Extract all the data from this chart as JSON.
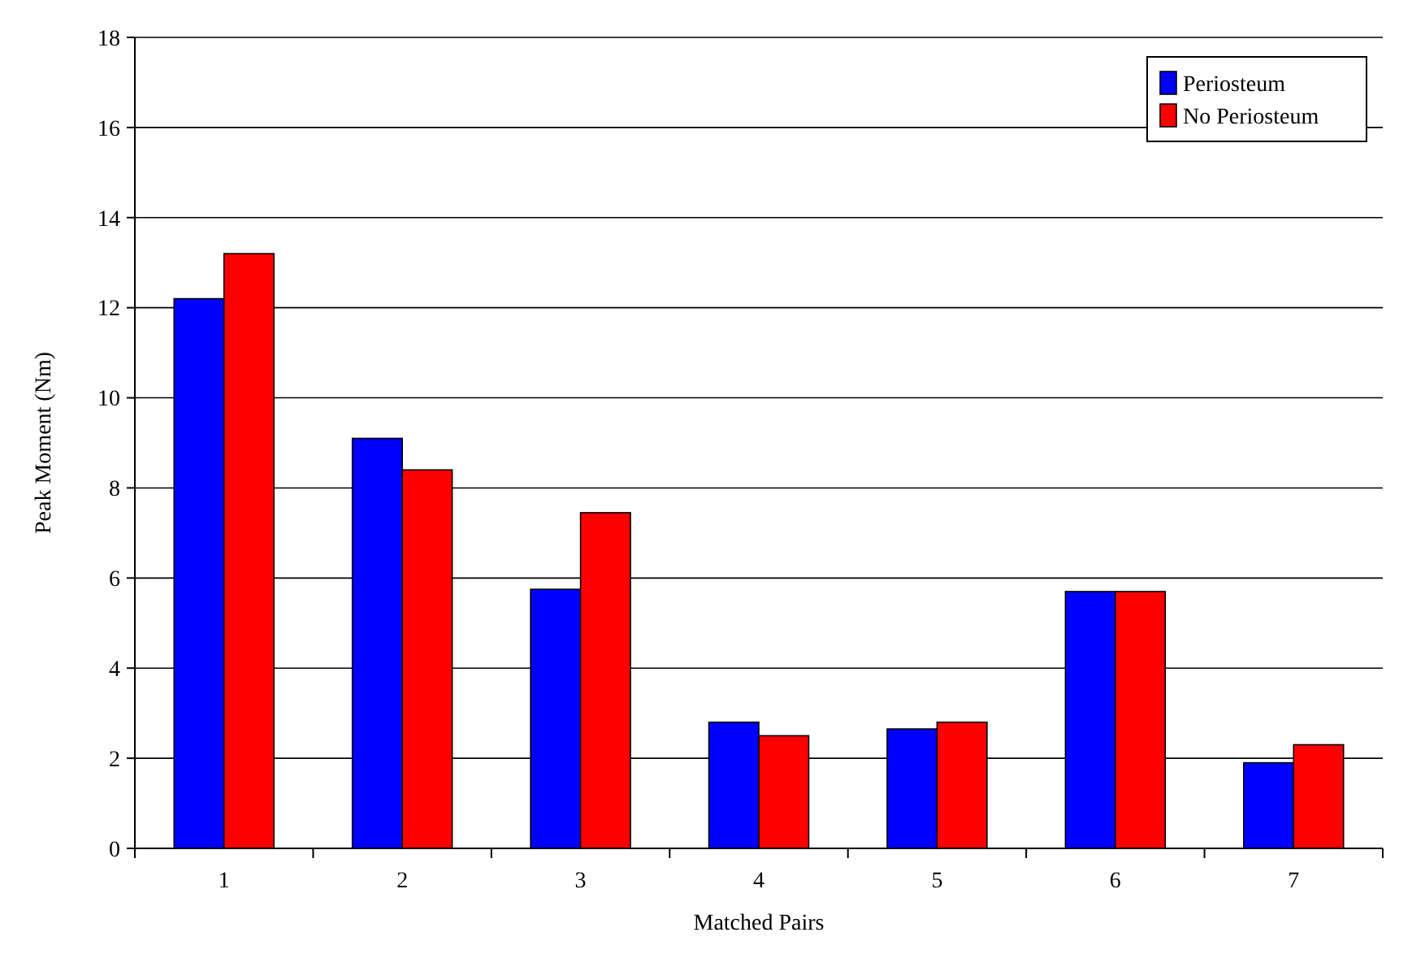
{
  "chart_data": {
    "type": "bar",
    "xlabel": "Matched Pairs",
    "ylabel": "Peak Moment (Nm)",
    "categories": [
      "1",
      "2",
      "3",
      "4",
      "5",
      "6",
      "7"
    ],
    "series": [
      {
        "name": "Periosteum",
        "color": "#0000ff",
        "values": [
          12.2,
          9.1,
          5.75,
          2.8,
          2.65,
          5.7,
          1.9
        ]
      },
      {
        "name": "No Periosteum",
        "color": "#ff0000",
        "values": [
          13.2,
          8.4,
          7.45,
          2.5,
          2.8,
          5.7,
          2.3
        ]
      }
    ],
    "ylim": [
      0,
      18
    ],
    "yticks": [
      0,
      2,
      4,
      6,
      8,
      10,
      12,
      14,
      16,
      18
    ],
    "grid": "y",
    "legend": "top right"
  }
}
